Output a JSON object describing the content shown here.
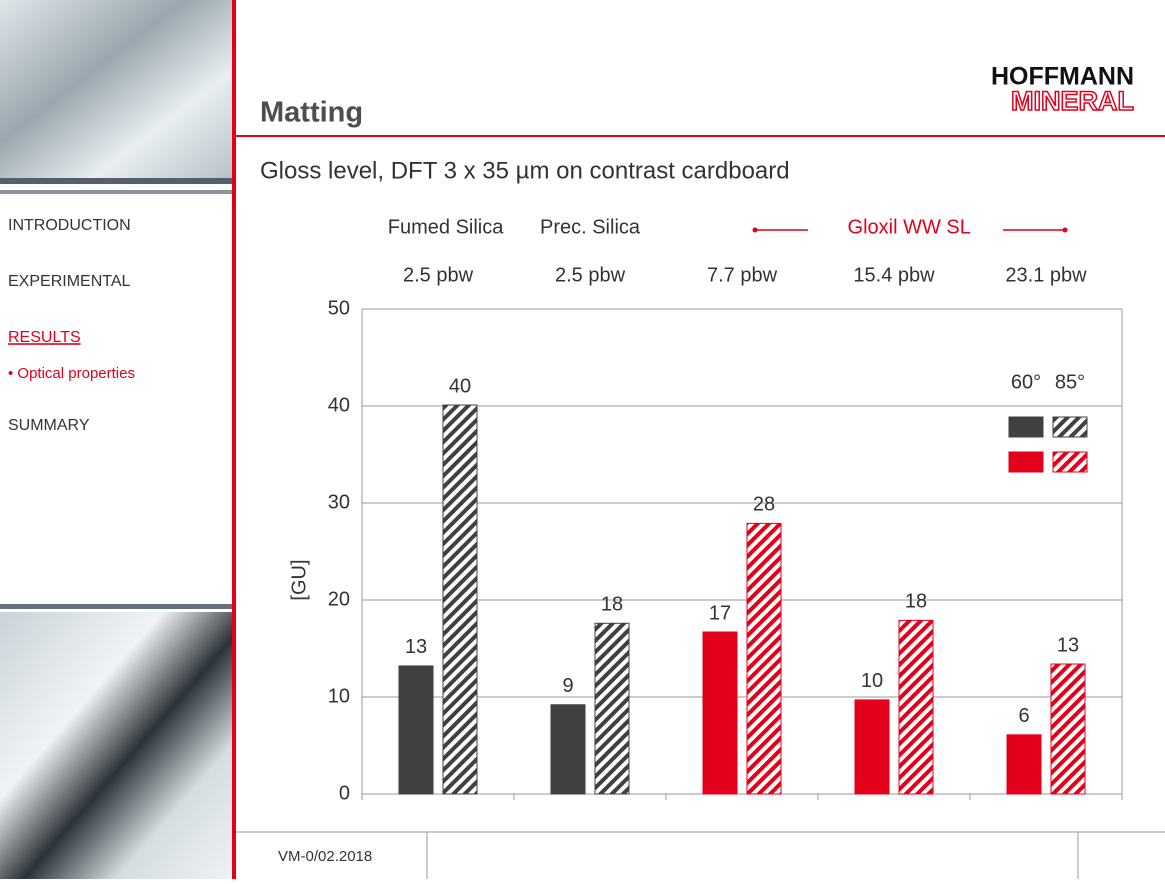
{
  "header": {
    "title": "Matting",
    "subtitle": "Gloss level, DFT 3 x 35 µm on contrast cardboard",
    "logo_top": "HOFFMANN",
    "logo_bottom": "MINERAL"
  },
  "nav": [
    "INTRODUCTION",
    "EXPERIMENTAL",
    "RESULTS",
    "• Optical properties",
    "SUMMARY"
  ],
  "footer": {
    "code": "VM-0/02.2018"
  },
  "chart_data": {
    "type": "bar",
    "groups": [
      "Fumed Silica",
      "Prec. Silica",
      "Gloxil WW SL"
    ],
    "categories": [
      "2.5 pbw",
      "2.5 pbw",
      "7.7 pbw",
      "15.4 pbw",
      "23.1 pbw"
    ],
    "y_label": "[GU]",
    "series": [
      {
        "name": "60°",
        "values": [
          13.2,
          9.2,
          16.7,
          9.7,
          6.1
        ],
        "value_labels": [
          "13",
          "9",
          "17",
          "10",
          "6"
        ]
      },
      {
        "name": "85°",
        "values": [
          40.1,
          17.6,
          27.9,
          17.9,
          13.4
        ],
        "value_labels": [
          "40",
          "18",
          "28",
          "18",
          "13"
        ]
      }
    ],
    "palette": [
      "#404040",
      "#e2001a"
    ],
    "color_index": [
      0,
      0,
      1,
      1,
      1
    ],
    "ylim": [
      0,
      50
    ],
    "yticks": [
      0,
      10,
      20,
      30,
      40,
      50
    ],
    "grid": true
  }
}
